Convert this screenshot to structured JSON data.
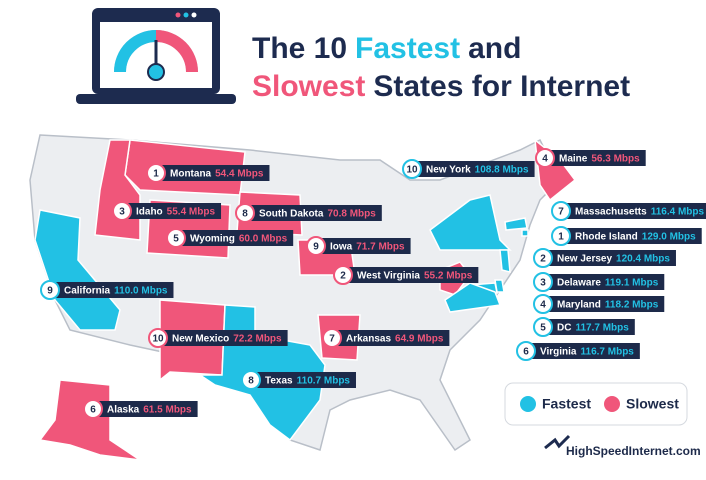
{
  "title": {
    "line1": [
      "The 10",
      "Fastest",
      "and"
    ],
    "line2": [
      "Slowest",
      "States for Internet"
    ]
  },
  "legend": [
    {
      "label": "Fastest",
      "color": "#22c1e4"
    },
    {
      "label": "Slowest",
      "color": "#f0567a"
    }
  ],
  "states": [
    {
      "rank": 1,
      "name": "Montana",
      "speed": "54.4 Mbps",
      "group": 1
    },
    {
      "rank": 3,
      "name": "Idaho",
      "speed": "55.4 Mbps",
      "group": 1
    },
    {
      "rank": 8,
      "name": "South Dakota",
      "speed": "70.8 Mbps",
      "group": 1
    },
    {
      "rank": 5,
      "name": "Wyoming",
      "speed": "60.0 Mbps",
      "group": 1
    },
    {
      "rank": 9,
      "name": "Iowa",
      "speed": "71.7 Mbps",
      "group": 1
    },
    {
      "rank": 2,
      "name": "West Virginia",
      "speed": "55.2 Mbps",
      "group": 1
    },
    {
      "rank": 9,
      "name": "California",
      "speed": "110.0 Mbps",
      "group": 0
    },
    {
      "rank": 10,
      "name": "New Mexico",
      "speed": "72.2 Mbps",
      "group": 1
    },
    {
      "rank": 7,
      "name": "Arkansas",
      "speed": "64.9 Mbps",
      "group": 1
    },
    {
      "rank": 8,
      "name": "Texas",
      "speed": "110.7 Mbps",
      "group": 0
    },
    {
      "rank": 6,
      "name": "Alaska",
      "speed": "61.5 Mbps",
      "group": 1
    },
    {
      "rank": 10,
      "name": "New York",
      "speed": "108.8 Mbps",
      "group": 0
    },
    {
      "rank": 4,
      "name": "Maine",
      "speed": "56.3 Mbps",
      "group": 1
    },
    {
      "rank": 7,
      "name": "Massachusetts",
      "speed": "116.4 Mbps",
      "group": 0
    },
    {
      "rank": 1,
      "name": "Rhode Island",
      "speed": "129.0 Mbps",
      "group": 0
    },
    {
      "rank": 2,
      "name": "New Jersey",
      "speed": "120.4 Mbps",
      "group": 0
    },
    {
      "rank": 3,
      "name": "Delaware",
      "speed": "119.1 Mbps",
      "group": 0
    },
    {
      "rank": 4,
      "name": "Maryland",
      "speed": "118.2 Mbps",
      "group": 0
    },
    {
      "rank": 5,
      "name": "DC",
      "speed": "117.7 Mbps",
      "group": 0
    },
    {
      "rank": 6,
      "name": "Virginia",
      "speed": "116.7 Mbps",
      "group": 0
    }
  ],
  "logo": "HighSpeedInternet.com"
}
